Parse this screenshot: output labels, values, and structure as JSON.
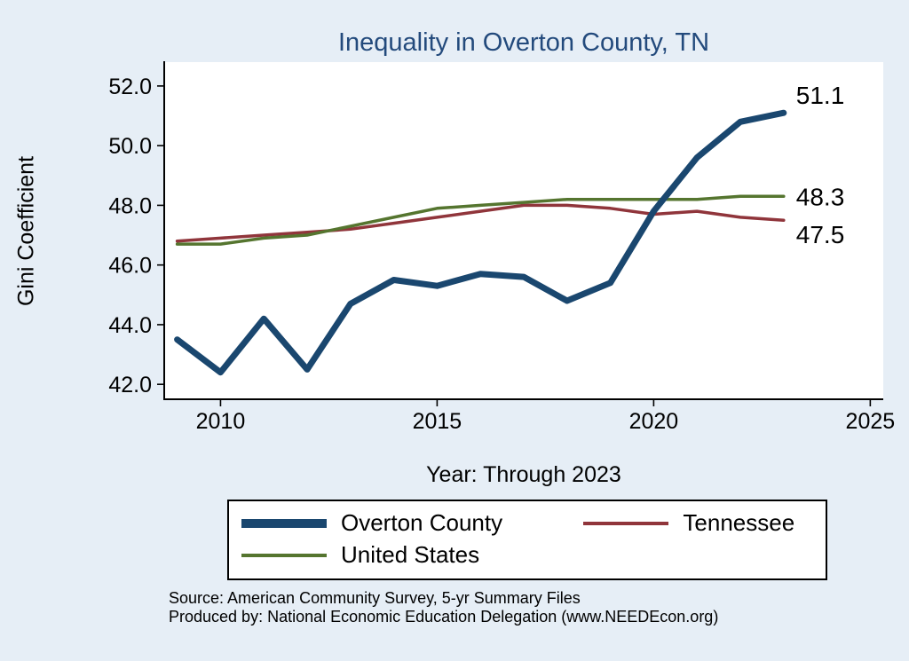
{
  "page": {
    "background": "#e6eef6",
    "title_color": "#234a7c"
  },
  "chart_data": {
    "type": "line",
    "title": "Inequality in Overton County, TN",
    "xlabel": "Year: Through 2023",
    "ylabel": "Gini Coefficient",
    "x": [
      2009,
      2010,
      2011,
      2012,
      2013,
      2014,
      2015,
      2016,
      2017,
      2018,
      2019,
      2020,
      2021,
      2022,
      2023
    ],
    "x_ticks": [
      2010,
      2015,
      2020,
      2025
    ],
    "y_ticks": [
      42.0,
      44.0,
      46.0,
      48.0,
      50.0,
      52.0
    ],
    "xlim": [
      2008.7,
      2025.3
    ],
    "ylim": [
      41.5,
      52.8
    ],
    "grid": false,
    "legend_position": "bottom",
    "plot_background": "#ffffff",
    "axis_color": "#000000",
    "text_color": "#000000",
    "series": [
      {
        "name": "Overton County",
        "color": "#1a476f",
        "width": 7,
        "end_label": "51.1",
        "values": [
          43.5,
          42.4,
          44.2,
          42.5,
          44.7,
          45.5,
          45.3,
          45.7,
          45.6,
          44.8,
          45.4,
          47.8,
          49.6,
          50.8,
          51.1
        ]
      },
      {
        "name": "Tennessee",
        "color": "#90353b",
        "width": 3.5,
        "end_label": "47.5",
        "values": [
          46.8,
          46.9,
          47.0,
          47.1,
          47.2,
          47.4,
          47.6,
          47.8,
          48.0,
          48.0,
          47.9,
          47.7,
          47.8,
          47.6,
          47.5
        ]
      },
      {
        "name": "United States",
        "color": "#55752f",
        "width": 3.5,
        "end_label": "48.3",
        "values": [
          46.7,
          46.7,
          46.9,
          47.0,
          47.3,
          47.6,
          47.9,
          48.0,
          48.1,
          48.2,
          48.2,
          48.2,
          48.2,
          48.3,
          48.3
        ]
      }
    ]
  },
  "notes": {
    "source": "Source: American Community Survey, 5-yr Summary Files",
    "produced_by": "Produced by: National Economic Education Delegation (www.NEEDEcon.org)"
  }
}
